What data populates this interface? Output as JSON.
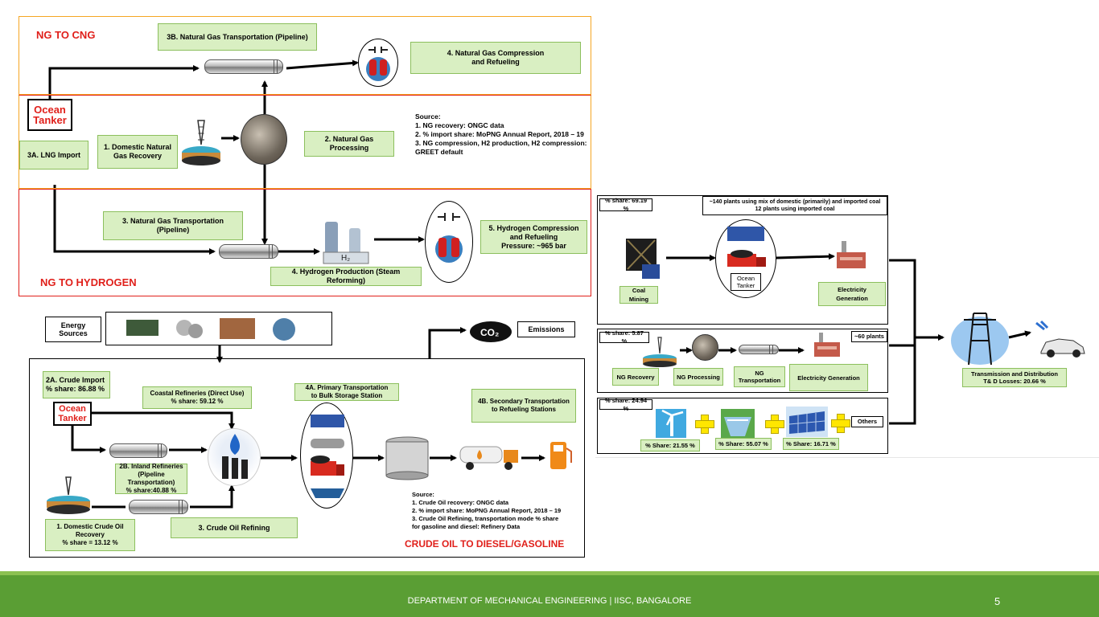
{
  "ng_cng": {
    "title": "NG TO CNG",
    "pipeline_transport": "3B. Natural Gas Transportation (Pipeline)",
    "compression": "4. Natural Gas Compression\nand Refueling"
  },
  "ng_shared": {
    "tanker_line1": "Ocean",
    "tanker_line2": "Tanker",
    "lng_import": "3A. LNG Import",
    "domestic_recovery": "1. Domestic Natural\nGas Recovery",
    "processing": "2. Natural Gas Processing",
    "source": "Source:\n1.   NG recovery: ONGC data\n2.   % import share: MoPNG Annual Report, 2018 – 19\n3.   NG compression, H2 production, H2 compression:\nGREET default"
  },
  "ng_h2": {
    "title": "NG TO HYDROGEN",
    "pipeline_transport": "3. Natural Gas Transportation (Pipeline)",
    "production": "4. Hydrogen Production (Steam Reforming)",
    "compression": "5. Hydrogen Compression\nand Refueling\nPressure: ~965 bar",
    "h2_label": "H₂"
  },
  "energy": {
    "sources_label": "Energy\nSources",
    "emissions_label": "Emissions",
    "co2_label": "CO₂"
  },
  "crude": {
    "title": "CRUDE OIL TO DIESEL/GASOLINE",
    "import": "2A. Crude Import\n% share: 86.88 %",
    "tanker_line1": "Ocean",
    "tanker_line2": "Tanker",
    "coastal": "Coastal Refineries (Direct Use)\n% share: 59.12 %",
    "inland": "2B. Inland Refineries\n(Pipeline Transportation)\n% share:40.88 %",
    "refining": "3. Crude Oil Refining",
    "domestic": "1. Domestic Crude Oil\nRecovery\n% share = 13.12 %",
    "primary": "4A. Primary Transportation\nto Bulk Storage Station",
    "secondary": "4B. Secondary Transportation\nto Refueling Stations",
    "source": "Source:\n1.   Crude Oil recovery: ONGC data\n2.   % import share: MoPNG Annual Report, 2018 – 19\n3.   Crude Oil Refining, transportation mode % share\n      for gasoline and diesel: Refinery Data"
  },
  "electricity": {
    "coal": {
      "share": "% share:  69.19 %",
      "note": "~140 plants using mix  of domestic (primarily) and imported coal\n12 plants using imported coal",
      "mining": "Coal Mining",
      "tanker": "Ocean\nTanker",
      "generation": "Electricity Generation"
    },
    "gas": {
      "share": "% share:  5.87 %",
      "plants": "~60 plants",
      "recovery": "NG Recovery",
      "processing": "NG Processing",
      "transport": "NG\nTransportation",
      "generation": "Electricity Generation"
    },
    "renew": {
      "share": "% share:  24.94 %",
      "wind": "% Share: 21.55 %",
      "hydro": "% Share: 55.07 %",
      "solar": "% Share: 16.71 %",
      "others": "Others"
    },
    "td": "Transmission and Distribution\nT& D Losses: 20.66 %"
  },
  "footer": {
    "text": "DEPARTMENT OF MECHANICAL ENGINEERING | IISC, BANGALORE",
    "page": "5"
  },
  "colors": {
    "box_green": "#d9efc2",
    "title_red": "#e0201b",
    "frame_orange": "#f5a623",
    "footer_green": "#5a9e34"
  }
}
